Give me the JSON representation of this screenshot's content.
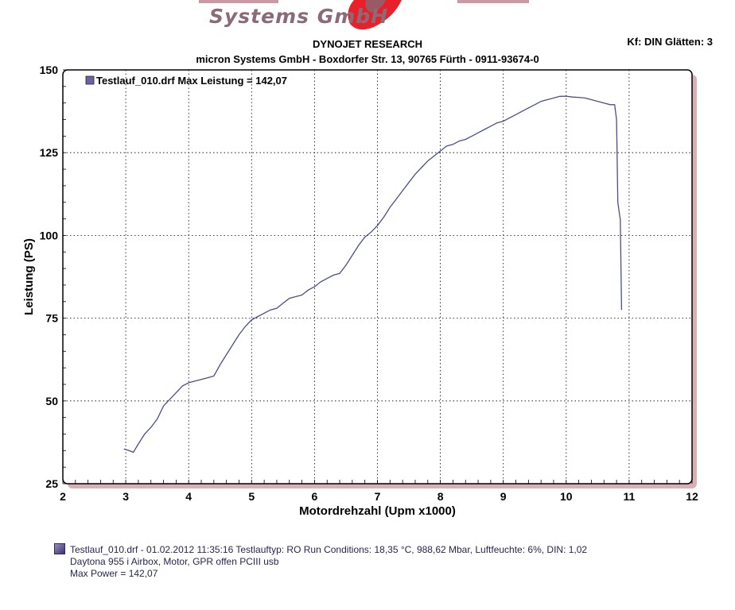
{
  "header": {
    "logo_text": "Systems GmbH",
    "title": "DYNOJET RESEARCH",
    "subtitle": "micron Systems GmbH - Boxdorfer Str. 13, 90765 Fürth - 0911-93674-0",
    "settings": "Kf: DIN  Glätten: 3"
  },
  "chart_data": {
    "type": "line",
    "title": "",
    "xlabel": "Motordrehzahl (Upm x1000)",
    "ylabel": "Leistung (PS)",
    "xlim": [
      2,
      12
    ],
    "ylim": [
      25,
      150
    ],
    "xticks": [
      "2",
      "3",
      "4",
      "5",
      "6",
      "7",
      "8",
      "9",
      "10",
      "11",
      "12"
    ],
    "yticks": [
      "25",
      "50",
      "75",
      "100",
      "125",
      "150"
    ],
    "grid": true,
    "legend": "top-left",
    "legend_label": "Testlauf_010.drf Max Leistung = 142,07",
    "series": [
      {
        "name": "Testlauf_010.drf",
        "color": "#4a4f88",
        "x": [
          2.97,
          3.05,
          3.12,
          3.2,
          3.3,
          3.4,
          3.5,
          3.6,
          3.7,
          3.8,
          3.9,
          4.0,
          4.1,
          4.2,
          4.3,
          4.4,
          4.5,
          4.6,
          4.7,
          4.8,
          4.9,
          5.0,
          5.1,
          5.2,
          5.3,
          5.4,
          5.5,
          5.6,
          5.7,
          5.8,
          5.9,
          6.0,
          6.1,
          6.2,
          6.3,
          6.4,
          6.5,
          6.6,
          6.7,
          6.8,
          6.9,
          7.0,
          7.1,
          7.2,
          7.3,
          7.4,
          7.5,
          7.6,
          7.7,
          7.8,
          7.9,
          8.0,
          8.1,
          8.2,
          8.3,
          8.4,
          8.5,
          8.6,
          8.7,
          8.8,
          8.9,
          9.0,
          9.1,
          9.2,
          9.3,
          9.4,
          9.5,
          9.6,
          9.7,
          9.8,
          9.9,
          10.0,
          10.1,
          10.2,
          10.3,
          10.4,
          10.5,
          10.6,
          10.7,
          10.77,
          10.8,
          10.82,
          10.85,
          10.86,
          10.88
        ],
        "y": [
          35.5,
          35.0,
          34.5,
          37.0,
          40.0,
          42.0,
          44.5,
          48.5,
          50.5,
          52.5,
          54.5,
          55.5,
          56.0,
          56.5,
          57.0,
          57.5,
          61.0,
          64.0,
          67.0,
          70.0,
          72.5,
          74.5,
          75.5,
          76.5,
          77.5,
          78.0,
          79.5,
          81.0,
          81.5,
          82.0,
          83.5,
          84.5,
          86.0,
          87.0,
          88.0,
          88.5,
          91.0,
          94.0,
          97.0,
          99.5,
          101.0,
          103.0,
          105.5,
          108.5,
          111.0,
          113.5,
          116.0,
          118.5,
          120.5,
          122.5,
          124.0,
          125.5,
          127.0,
          127.5,
          128.5,
          129.0,
          130.0,
          131.0,
          132.0,
          133.0,
          134.0,
          134.5,
          135.5,
          136.5,
          137.5,
          138.5,
          139.5,
          140.5,
          141.0,
          141.5,
          142.0,
          142.07,
          141.8,
          141.7,
          141.5,
          141.0,
          140.5,
          140.0,
          139.5,
          139.5,
          135.0,
          110.0,
          106.0,
          105.0,
          77.5
        ]
      }
    ]
  },
  "footer": {
    "line1": "Testlauf_010.drf - 01.02.2012 11:35:16  Testlauftyp: RO  Run Conditions: 18,35 °C, 988,62 Mbar,  Luftfeuchte: 6%, DIN: 1,02",
    "line2": "Daytona 955 i Airbox, Motor, GPR offen PCIII usb",
    "line3": "Max Power = 142,07"
  },
  "colors": {
    "line": "#4a4f88",
    "shadow": "#d8b0b6",
    "logo_red": "#e8202a"
  }
}
